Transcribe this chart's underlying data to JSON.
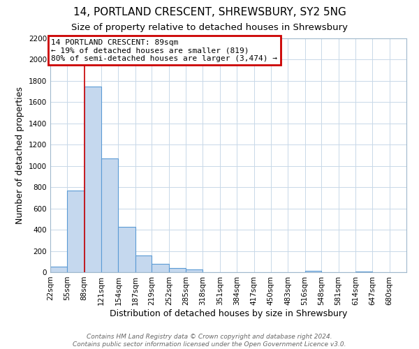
{
  "title": "14, PORTLAND CRESCENT, SHREWSBURY, SY2 5NG",
  "subtitle": "Size of property relative to detached houses in Shrewsbury",
  "xlabel": "Distribution of detached houses by size in Shrewsbury",
  "ylabel": "Number of detached properties",
  "bin_labels": [
    "22sqm",
    "55sqm",
    "88sqm",
    "121sqm",
    "154sqm",
    "187sqm",
    "219sqm",
    "252sqm",
    "285sqm",
    "318sqm",
    "351sqm",
    "384sqm",
    "417sqm",
    "450sqm",
    "483sqm",
    "516sqm",
    "548sqm",
    "581sqm",
    "614sqm",
    "647sqm",
    "680sqm"
  ],
  "bar_values": [
    55,
    770,
    1750,
    1070,
    430,
    155,
    80,
    40,
    25,
    0,
    0,
    0,
    0,
    0,
    0,
    10,
    0,
    0,
    5,
    0,
    0
  ],
  "bar_color": "#c5d8ee",
  "bar_edge_color": "#5b9bd5",
  "property_line_x": 89,
  "bin_edges": [
    22,
    55,
    88,
    121,
    154,
    187,
    219,
    252,
    285,
    318,
    351,
    384,
    417,
    450,
    483,
    516,
    548,
    581,
    614,
    647,
    680,
    713
  ],
  "ylim": [
    0,
    2200
  ],
  "yticks": [
    0,
    200,
    400,
    600,
    800,
    1000,
    1200,
    1400,
    1600,
    1800,
    2000,
    2200
  ],
  "annotation_text": "14 PORTLAND CRESCENT: 89sqm\n← 19% of detached houses are smaller (819)\n80% of semi-detached houses are larger (3,474) →",
  "annotation_box_color": "#ffffff",
  "annotation_border_color": "#cc0000",
  "footer_line1": "Contains HM Land Registry data © Crown copyright and database right 2024.",
  "footer_line2": "Contains public sector information licensed under the Open Government Licence v3.0.",
  "background_color": "#ffffff",
  "grid_color": "#c8d8e8",
  "title_fontsize": 11,
  "subtitle_fontsize": 9.5,
  "axis_label_fontsize": 9,
  "tick_fontsize": 7.5,
  "footer_fontsize": 6.5,
  "annotation_fontsize": 8
}
